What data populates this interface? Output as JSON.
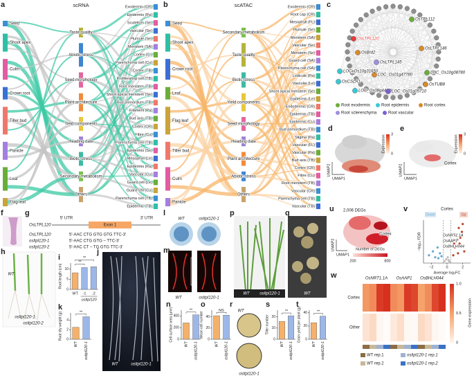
{
  "figure": {
    "a": {
      "letter": "a",
      "title": "scRNA",
      "tissues": [
        "Seed",
        "Shoot apex",
        "Culm",
        "Crown root",
        "Tiller bud",
        "Panicle",
        "Leaf",
        "Flag leaf"
      ],
      "tissue_colors": [
        "#3a8fd6",
        "#2fbfa6",
        "#e25ca3",
        "#3a6fd6",
        "#f0786a",
        "#a47fe0",
        "#6aae3a",
        "#c9a43a"
      ],
      "traits": [
        "Taste quality",
        "Abiotic stress",
        "Seed morphology",
        "Plant architecture",
        "Yield components",
        "Heading date",
        "Biotic stress",
        "Secondary metabolism",
        "Others"
      ],
      "trait_colors": [
        "#b5b33c",
        "#3f86d0",
        "#e2679f",
        "#ef8c3c",
        "#e8c73e",
        "#9d7fd8",
        "#3fb9a2",
        "#7bbf4a",
        "#c9a36b"
      ],
      "cells": [
        "Exodermis (CR)",
        "Epidermis (Pa)",
        "Scutellum (Se)",
        "Vascular (Se)",
        "Plumule (Se)",
        "Meristem (SA)",
        "Cortex (Cr)",
        "Parenchyma cell (Cu)",
        "Cortex (TB)",
        "Proliferating cell (TB)",
        "Root meristem (TB)",
        "Shoot apical meristem (Se)",
        "Bud primordium (TB)",
        "Filament (Pa)",
        "Bud axis (TB)",
        "Cortex (CR)",
        "Fibre (Cu)",
        "Parenchyma cell (TB)",
        "Epidermis (Se)",
        "Mesophyll (Le)",
        "Epidermis (Pa)",
        "Vascular (Cu)",
        "Guard cell (Le)",
        "Guard cell (Cu)",
        "Parenchyma cell (TB)",
        "Epidermis (TB)"
      ],
      "flow_colors": [
        "#3cc9a4",
        "#c4c4c4"
      ]
    },
    "b": {
      "letter": "b",
      "title": "scATAC",
      "tissues": [
        "Seed",
        "Shoot apex",
        "Crown root",
        "Leaf",
        "Flag leaf",
        "Tiller bud",
        "Culm",
        "Panicle"
      ],
      "tissue_colors": [
        "#3a8fd6",
        "#2fbfa6",
        "#3a6fd6",
        "#6aae3a",
        "#c9a43a",
        "#f0786a",
        "#e25ca3",
        "#a47fe0"
      ],
      "traits": [
        "Secondary metabolism",
        "Taste quality",
        "Biotic stress",
        "Yield components",
        "Seed morphology",
        "Heading date",
        "Plant architecture",
        "Abiotic stress",
        "Others"
      ],
      "trait_colors": [
        "#7bbf4a",
        "#b5b33c",
        "#3fb9a2",
        "#e8c73e",
        "#e2679f",
        "#9d7fd8",
        "#ef8c3c",
        "#3f86d0",
        "#c9a36b"
      ],
      "cells": [
        "Exodermis (CR)",
        "Root cap (CR)",
        "Mesophyll (FL)",
        "Plumule (Se)",
        "Meristem (SA)",
        "Vascular (Se)",
        "Meristem (Se)",
        "Guard cell (SA)",
        "Parenchyma cell (SA)",
        "Lodicule (Pa)",
        "Vascular (Le)",
        "Shoot apical meristem (Se)",
        "Epidermis (Le)",
        "Endodermis (CR)",
        "Epidermis (TB)",
        "Epidermis (Cu)",
        "Bud primordium (TB)",
        "Stigma (Pa)",
        "Vascular (FL)",
        "Vascular (Pa)",
        "Bud axis (TB)",
        "Cortex (CR)",
        "Fibre (Cu)",
        "Root meristem (TB)",
        "Vascular (CR)",
        "Parenchyma cell (TB)",
        "Vascular (TB)"
      ],
      "flow_colors": [
        "#f7b66a",
        "#fbd3a6"
      ]
    },
    "c": {
      "letter": "c",
      "genes": [
        "OsTPL112",
        "OsLTPL120",
        "OsBrd2",
        "OsLTPL145",
        "OsLTPL146",
        "LOC_Os10g31650",
        "LOC_Os01g47780",
        "LOC_Os10g08780",
        "OsCSLA1",
        "LOC_Os08g44480",
        "OsTUB8",
        "LOC_Os01g05710"
      ],
      "gene_colors": [
        "#6aae3a",
        "#e63b3b",
        "#d98b2b",
        "#9d8fe0",
        "#d98b2b",
        "#38c9d6",
        "#d98b2b",
        "#6aae3a",
        "#38c9d6",
        "#38c9d6",
        "#d98b2b",
        "#7b5fd6"
      ],
      "legend": [
        {
          "name": "Root exodermis",
          "color": "#6aae3a"
        },
        {
          "name": "Root epidermis",
          "color": "#38c9d6"
        },
        {
          "name": "Root cortex",
          "color": "#d98b2b"
        },
        {
          "name": "Root sclerenchyma",
          "color": "#9d8fe0"
        },
        {
          "name": "Root vascular",
          "color": "#7b5fd6"
        }
      ]
    },
    "d": {
      "letter": "d",
      "x_label": "UMAP1",
      "y_label": "UMAP2",
      "scale_label": "Expression",
      "scale_ticks": [
        0,
        3
      ]
    },
    "e": {
      "letter": "e",
      "x_label": "UMAP1",
      "y_label": "UMAP2",
      "scale_label": "Expression",
      "scale_ticks": [
        0,
        3
      ],
      "annotation": "Cortex"
    },
    "f": {
      "letter": "f"
    },
    "g": {
      "letter": "g",
      "utr5": "5′ UTR",
      "exon": "Exon 1",
      "utr3": "3′ UTR",
      "gene": "OsLTPL120",
      "rows": [
        {
          "name": "OsLTPL120",
          "seq": "5′-AAC CTG GTG GTG TTC-3′"
        },
        {
          "name": "osltpl120-1",
          "seq": "5′-AAC CTG GTG – TTC-3′"
        },
        {
          "name": "osltpl120-2",
          "seq": "5′-AAC CT – TG GTG TTC-3′"
        }
      ]
    },
    "h": {
      "letter": "h",
      "labels": [
        "WT",
        "osltpl120-1",
        "osltpl120-2"
      ]
    },
    "i": {
      "letter": "i",
      "y_label": "Root length (cm)",
      "categories": [
        "WT",
        "-1",
        "-2"
      ],
      "group_label": "osltpl120",
      "values": [
        8.2,
        10.8,
        11.2
      ],
      "colors": [
        "#f5b06a",
        "#9db7e8",
        "#9db7e8"
      ],
      "ylim": [
        0,
        13
      ],
      "yticks": [
        0,
        5,
        10
      ],
      "significance": [
        "**",
        "**"
      ]
    },
    "j": {
      "letter": "j",
      "labels": [
        "WT",
        "osltpl120-1"
      ]
    },
    "k": {
      "letter": "k",
      "y_label": "Root dry weight (g)",
      "categories": [
        "WT",
        "osltpl120-1"
      ],
      "values": [
        2.5,
        4.7
      ],
      "colors": [
        "#f5b06a",
        "#9db7e8"
      ],
      "ylim": [
        0,
        5.5
      ],
      "yticks": [
        0,
        2,
        4
      ],
      "significance": [
        "**"
      ]
    },
    "l": {
      "letter": "l",
      "labels": [
        "WT",
        "osltpl120-1"
      ]
    },
    "m": {
      "letter": "m",
      "labels": [
        "WT",
        "osltpl120-1"
      ]
    },
    "n": {
      "letter": "n",
      "y_label": "Cell surface area (μm²)",
      "categories": [
        "WT",
        "osltpl120-1"
      ],
      "values": [
        280,
        420
      ],
      "colors": [
        "#f5b06a",
        "#9db7e8"
      ],
      "ylim": [
        0,
        500
      ],
      "yticks": [
        0,
        200,
        400
      ],
      "significance": [
        "**"
      ]
    },
    "o": {
      "letter": "o",
      "y_label": "Mean cell number",
      "categories": [
        "WT",
        "osltpl120-1"
      ],
      "values": [
        42,
        43
      ],
      "colors": [
        "#f5b06a",
        "#9db7e8"
      ],
      "ylim": [
        0,
        52
      ],
      "yticks": [
        0,
        20,
        40
      ],
      "significance": [
        "NS"
      ]
    },
    "p": {
      "letter": "p",
      "labels": [
        "WT",
        "osltpl120-1"
      ]
    },
    "q": {
      "letter": "q",
      "labels": [
        "WT",
        "osltpl120-1"
      ]
    },
    "r": {
      "letter": "r",
      "labels": [
        "WT",
        "osltpl120-1"
      ]
    },
    "s": {
      "letter": "s",
      "y_label": "Tiller number",
      "categories": [
        "WT",
        "osltpl120-1"
      ],
      "values": [
        16,
        21
      ],
      "colors": [
        "#f5b06a",
        "#9db7e8"
      ],
      "ylim": [
        0,
        26
      ],
      "yticks": [
        0,
        10,
        20
      ],
      "significance": [
        "**"
      ]
    },
    "t": {
      "letter": "t",
      "y_label": "Grain yield per plant (g)",
      "categories": [
        "WT",
        "osltpl120-1"
      ],
      "values": [
        25,
        35
      ],
      "colors": [
        "#f5b06a",
        "#9db7e8"
      ],
      "ylim": [
        0,
        44
      ],
      "yticks": [
        0,
        20,
        40
      ],
      "significance": [
        "**"
      ]
    },
    "u": {
      "letter": "u",
      "title": "2,006 DEGs",
      "annotation": "Cortex",
      "x_label": "UMAP1",
      "y_label": "UMAP2",
      "scale_label": "Number of DEGs",
      "scale_ticks": [
        200,
        800
      ]
    },
    "v": {
      "letter": "v",
      "title": "Cortex",
      "down": "Down",
      "up": "Up",
      "x_label": "Average log₂FC",
      "y_label": "−log₁₀ FDR",
      "xlim": [
        -3,
        3
      ],
      "xticks": [
        {
          "value": -2,
          "label": "−2"
        },
        0,
        2
      ],
      "ylim": [
        0,
        22
      ],
      "threshold_x": [
        -0.5,
        0.5
      ],
      "x": [
        -2.3,
        -1.8,
        -1.5,
        -1.2,
        -0.9,
        -1.1,
        -0.7,
        -0.3,
        0.2,
        -0.1,
        0.3,
        0.1,
        0.8,
        1.0,
        1.3,
        1.6,
        1.9,
        2.2,
        1.1,
        1.5,
        2.0,
        1.4,
        0.9,
        1.7
      ],
      "y": [
        4,
        6,
        3,
        8,
        5,
        2.5,
        3.5,
        1,
        1.5,
        2,
        0.8,
        3,
        4,
        8,
        12,
        10,
        16,
        6,
        14,
        18,
        20,
        5,
        10,
        13
      ],
      "colors": {
        "down": "#5fa8d3",
        "up": "#b5472c",
        "ns": "#bdbdbd"
      },
      "genes": [
        "OsNRT1.1A",
        "OsAAP1",
        "OsBHLH044"
      ]
    },
    "w": {
      "letter": "w",
      "genes": [
        "OsNRT1.1A",
        "OsAAP1",
        "OsBHLH044"
      ],
      "rows": [
        "Cortex",
        "Other"
      ],
      "values": [
        [
          0.55,
          0.6,
          0.95,
          1.0,
          0.6,
          0.55,
          0.95,
          0.9,
          0.5,
          0.6,
          0.9,
          1.0
        ],
        [
          0.15,
          0.2,
          0.05,
          0.02,
          0.12,
          0.18,
          0.04,
          0.03,
          0.2,
          0.15,
          0.05,
          0.02
        ]
      ],
      "reps": [
        {
          "name": "WT rep.1",
          "color": "#8c6d46"
        },
        {
          "name": "WT rep.2",
          "color": "#c8b89a"
        },
        {
          "name": "osltpl120-1 rep.1",
          "color": "#9fb3d1"
        },
        {
          "name": "osltpl120-1 rep.2",
          "color": "#3b73c4"
        }
      ],
      "scale_label": "Gene expression",
      "scale_ticks": [
        0,
        0.5,
        {
          "value": 1,
          "label": "1.0"
        }
      ]
    }
  }
}
